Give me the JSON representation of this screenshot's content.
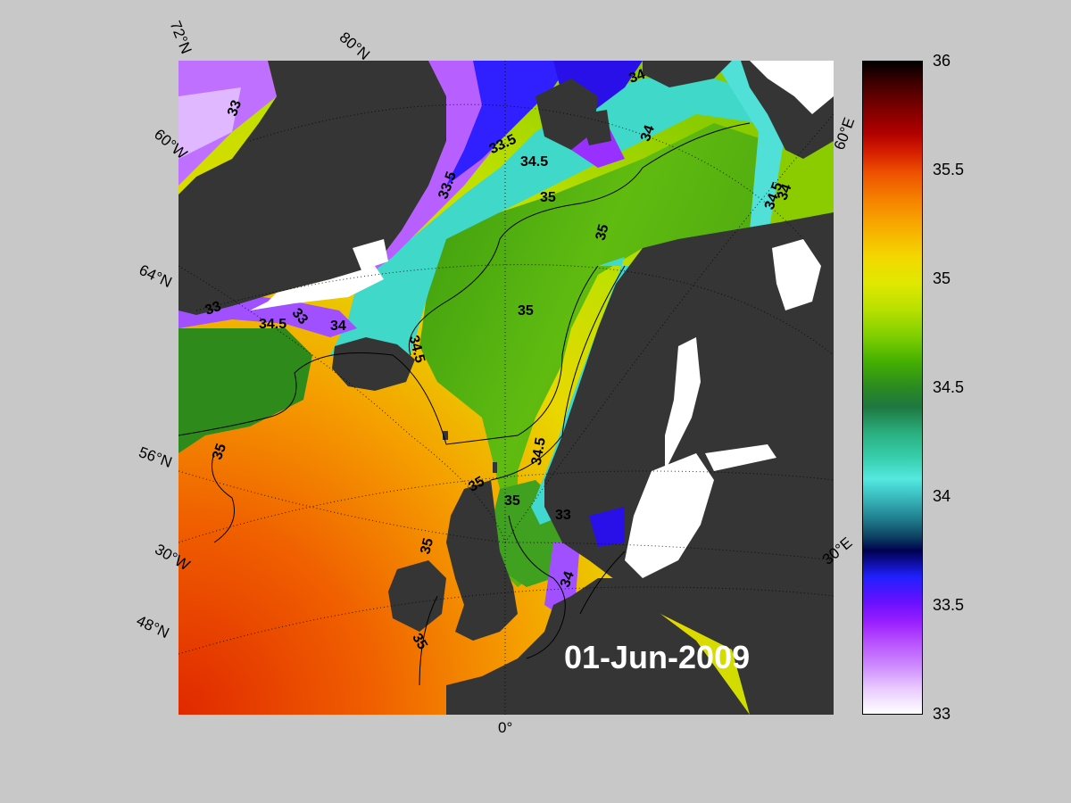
{
  "map": {
    "date": "01-Jun-2009",
    "graticule_labels": {
      "lat_72": "72°N",
      "lat_80": "80°N",
      "lat_64": "64°N",
      "lat_56": "56°N",
      "lat_48": "48°N",
      "lon_60w": "60°W",
      "lon_30w": "30°W",
      "lon_0": "0°",
      "lon_30e": "30°E",
      "lon_60e": "60°E"
    },
    "contour_labels": [
      "33",
      "33.5",
      "34",
      "34.5",
      "35"
    ],
    "colors": {
      "land": "#353535",
      "ice": "#ffffff",
      "background": "#c8c8c8"
    }
  },
  "colorbar": {
    "ticks": [
      "36",
      "35.5",
      "35",
      "34.5",
      "34",
      "33.5",
      "33"
    ],
    "min": 33,
    "max": 36
  }
}
